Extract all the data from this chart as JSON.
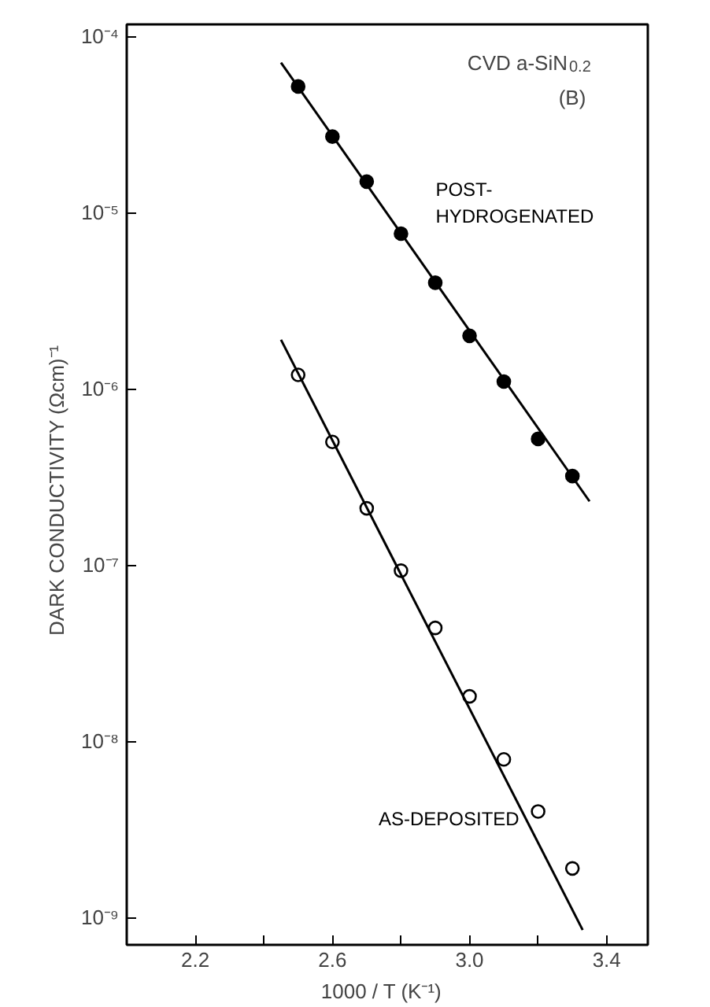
{
  "chart_data": {
    "type": "scatter",
    "xlabel": "1000 / T   (K⁻¹)",
    "ylabel": "DARK CONDUCTIVITY   (Ωcm)⁻¹",
    "log": "y",
    "grid": false,
    "xlim": [
      2.0,
      3.52
    ],
    "ylim": [
      7e-10,
      0.000117
    ],
    "xticks": [
      2.2,
      {
        "value": 2.4,
        "label": null
      },
      2.6,
      {
        "value": 2.8,
        "label": null
      },
      {
        "value": 3.0,
        "label": "3.0"
      },
      {
        "value": 3.2,
        "label": null
      },
      3.4
    ],
    "yticks": [
      {
        "value": 1e-09,
        "label": "10⁻⁹"
      },
      {
        "value": 1e-08,
        "label": "10⁻⁸"
      },
      {
        "value": 1e-07,
        "label": "10⁻⁷"
      },
      {
        "value": 1e-06,
        "label": "10⁻⁶"
      },
      {
        "value": 1e-05,
        "label": "10⁻⁵"
      },
      {
        "value": 0.0001,
        "label": "10⁻⁴"
      }
    ],
    "series": [
      {
        "name": "POST-\nHYDROGENATED",
        "color": "#000000",
        "marker": "circle",
        "x": [
          2.5,
          2.6,
          2.7,
          2.8,
          2.9,
          3.0,
          3.1,
          3.2,
          3.3
        ],
        "values": [
          5.2e-05,
          2.7e-05,
          1.5e-05,
          7.6e-06,
          4e-06,
          2e-06,
          1.1e-06,
          5.2e-07,
          3.2e-07
        ]
      },
      {
        "name": "AS-DEPOSITED",
        "color": "#000000",
        "marker": "circle",
        "x": [
          2.5,
          2.6,
          2.7,
          2.8,
          2.9,
          3.0,
          3.1,
          3.2,
          3.3
        ],
        "values": [
          1.2e-06,
          5e-07,
          2.1e-07,
          9.3e-08,
          4.4e-08,
          1.8e-08,
          7.9e-09,
          4e-09,
          1.9e-09
        ]
      },
      {
        "type": "line",
        "color": "#000000",
        "x": [
          2.45,
          3.35
        ],
        "values": [
          7.1e-05,
          2.3e-07
        ]
      },
      {
        "type": "line",
        "color": "#000000",
        "x": [
          2.45,
          3.33
        ],
        "values": [
          1.9e-06,
          8.5e-10
        ]
      }
    ],
    "annotations": [
      "CVD a-SiN$_{0.2}$",
      "(B)"
    ]
  }
}
